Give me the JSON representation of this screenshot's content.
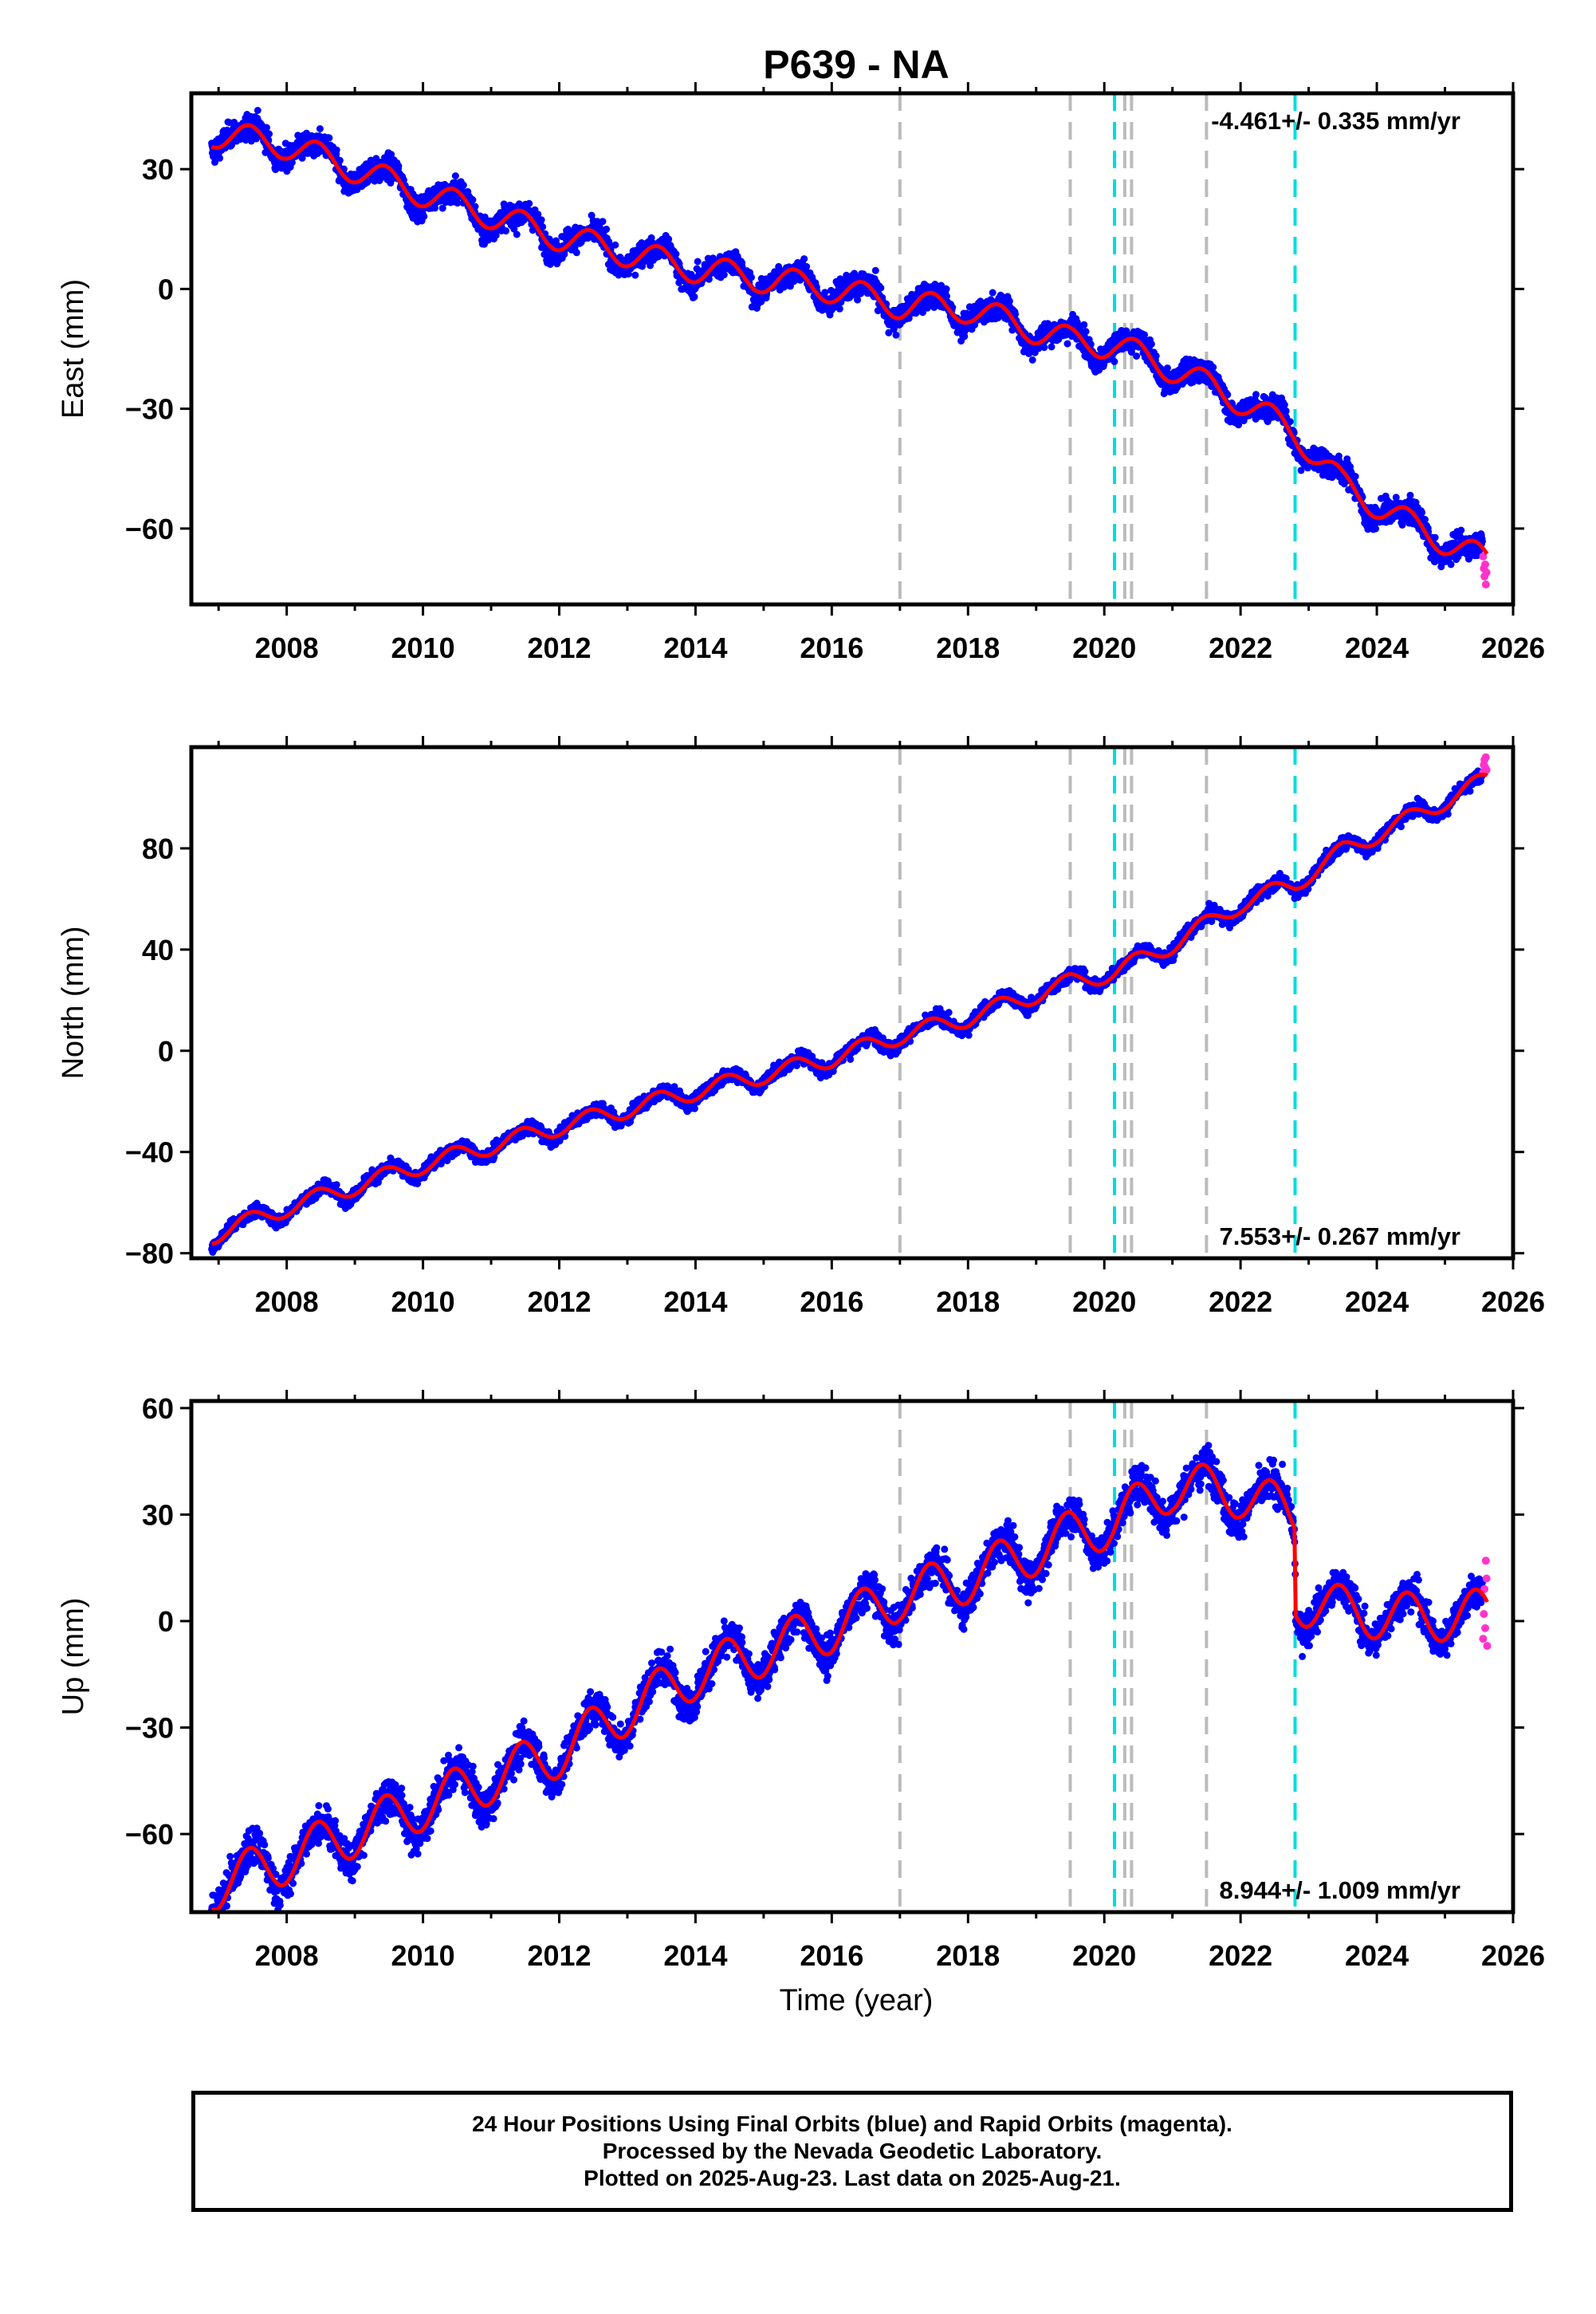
{
  "colors": {
    "final_orbits": "#0000ff",
    "rapid_orbits": "#ff33cc",
    "model": "#ff0000",
    "equipment_change": "#bbbbbb",
    "earthquake": "#00dddd"
  },
  "chart_data": {
    "title": "P639 - NA",
    "type": "scatter",
    "x_label": "Time (year)",
    "x_ticks": [
      "2008",
      "2010",
      "2012",
      "2014",
      "2016",
      "2018",
      "2020",
      "2022",
      "2024",
      "2026"
    ],
    "xlim": [
      2006.6,
      2026.0
    ],
    "event_lines": {
      "gray": [
        2017.0,
        2019.5,
        2020.3,
        2020.4,
        2021.5
      ],
      "cyan": [
        2020.15,
        2022.8
      ]
    },
    "panels": [
      {
        "ylabel": "East (mm)",
        "ylim": [
          -79,
          49
        ],
        "yticks": [
          "30",
          "0",
          "−30",
          "−60"
        ],
        "ytick_values": [
          30,
          0,
          -30,
          -60
        ],
        "rate_text": "-4.461+/- 0.335 mm/yr",
        "rate_position": "top-right",
        "trend_points": [
          [
            2006.9,
            39
          ],
          [
            2008.0,
            36
          ],
          [
            2010.0,
            24
          ],
          [
            2012.0,
            13
          ],
          [
            2014.0,
            5
          ],
          [
            2016.0,
            0
          ],
          [
            2017.0,
            -4
          ],
          [
            2018.0,
            -5
          ],
          [
            2019.5,
            -13
          ],
          [
            2020.15,
            -14
          ],
          [
            2021.0,
            -20
          ],
          [
            2022.0,
            -28
          ],
          [
            2022.8,
            -36
          ],
          [
            2023.5,
            -49
          ],
          [
            2024.5,
            -59
          ],
          [
            2025.6,
            -68
          ]
        ],
        "seasonal_amplitude": 3.5,
        "scatter": 3.5,
        "breaks": [],
        "rapid_points": [
          [
            2025.56,
            -67
          ],
          [
            2025.57,
            -70
          ],
          [
            2025.58,
            -72
          ],
          [
            2025.59,
            -69
          ],
          [
            2025.6,
            -74
          ],
          [
            2025.61,
            -71
          ]
        ]
      },
      {
        "ylabel": "North (mm)",
        "ylim": [
          -82,
          120
        ],
        "yticks": [
          "80",
          "40",
          "0",
          "−40",
          "−80"
        ],
        "ytick_values": [
          80,
          40,
          0,
          -40,
          -80
        ],
        "rate_text": "7.553+/- 0.267 mm/yr",
        "rate_position": "bottom-right",
        "trend_points": [
          [
            2006.9,
            -73
          ],
          [
            2008.0,
            -62
          ],
          [
            2010.0,
            -45
          ],
          [
            2012.0,
            -30
          ],
          [
            2014.0,
            -16
          ],
          [
            2016.0,
            -3
          ],
          [
            2017.0,
            6
          ],
          [
            2018.0,
            13
          ],
          [
            2019.5,
            27
          ],
          [
            2020.15,
            31
          ],
          [
            2021.0,
            42
          ],
          [
            2022.0,
            58
          ],
          [
            2022.8,
            66
          ],
          [
            2023.5,
            79
          ],
          [
            2024.5,
            92
          ],
          [
            2025.6,
            107
          ]
        ],
        "seasonal_amplitude": 3.5,
        "scatter": 3,
        "breaks": [],
        "rapid_points": [
          [
            2025.56,
            110
          ],
          [
            2025.57,
            113
          ],
          [
            2025.58,
            115
          ],
          [
            2025.59,
            112
          ],
          [
            2025.6,
            116
          ],
          [
            2025.61,
            111
          ]
        ]
      },
      {
        "ylabel": "Up (mm)",
        "ylim": [
          -82,
          62
        ],
        "yticks": [
          "60",
          "30",
          "0",
          "−30",
          "−60"
        ],
        "ytick_values": [
          60,
          30,
          0,
          -30,
          -60
        ],
        "rate_text": "8.944+/- 1.009 mm/yr",
        "rate_position": "bottom-right",
        "trend_points": [
          [
            2006.9,
            -75
          ],
          [
            2008.0,
            -67
          ],
          [
            2010.0,
            -52
          ],
          [
            2012.0,
            -37
          ],
          [
            2013.0,
            -25
          ],
          [
            2014.0,
            -15
          ],
          [
            2016.0,
            -2
          ],
          [
            2017.0,
            7
          ],
          [
            2018.0,
            12
          ],
          [
            2019.5,
            24
          ],
          [
            2020.15,
            28
          ],
          [
            2021.0,
            38
          ],
          [
            2022.0,
            36
          ],
          [
            2022.79,
            30
          ],
          [
            2022.81,
            6
          ],
          [
            2023.5,
            3
          ],
          [
            2024.5,
            1
          ],
          [
            2025.6,
            2
          ]
        ],
        "seasonal_amplitude": 7,
        "scatter": 6,
        "breaks": [
          2022.8
        ],
        "rapid_points": [
          [
            2025.56,
            -5
          ],
          [
            2025.57,
            2
          ],
          [
            2025.58,
            9
          ],
          [
            2025.59,
            -2
          ],
          [
            2025.6,
            17
          ],
          [
            2025.61,
            12
          ],
          [
            2025.62,
            -7
          ]
        ]
      }
    ]
  },
  "footer": {
    "line1": "24 Hour Positions Using Final Orbits (blue) and Rapid Orbits (magenta).",
    "line2": "Processed by the Nevada Geodetic Laboratory.",
    "line3": "Plotted on 2025-Aug-23. Last data on 2025-Aug-21."
  }
}
